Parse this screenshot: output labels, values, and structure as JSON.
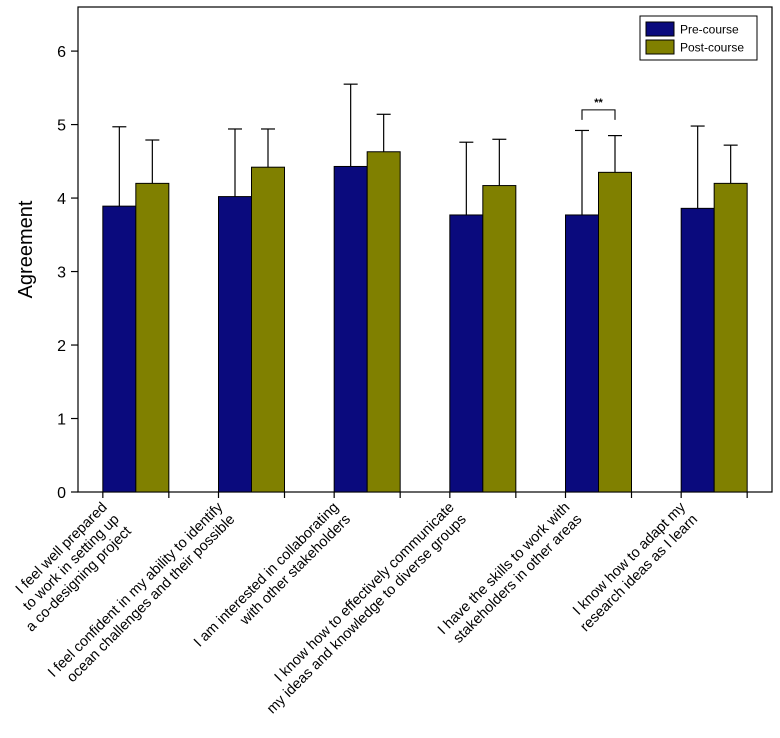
{
  "chart_data": {
    "type": "bar",
    "title": "",
    "xlabel": "",
    "ylabel": "Agreement",
    "ylim": [
      0,
      6.6
    ],
    "yticks": [
      "0",
      "1",
      "2",
      "3",
      "4",
      "5",
      "6"
    ],
    "categories": [
      [
        "I feel well prepared",
        "to work in setting up",
        "a co-designing project"
      ],
      [
        "I feel confident in my ability to identify",
        "ocean challenges and their possible"
      ],
      [
        "I am interested in collaborating",
        "with other stakeholders"
      ],
      [
        "I know how to effectively communicate",
        "my ideas and knowledge to diverse groups"
      ],
      [
        "I have the skills to work with",
        "stakeholders in other areas"
      ],
      [
        "I know how to adapt my",
        "research ideas as I learn"
      ]
    ],
    "series": [
      {
        "name": "Pre-course",
        "color": "#0a0a7d",
        "values": [
          3.89,
          4.02,
          4.43,
          3.77,
          3.77,
          3.86
        ],
        "errors": [
          1.08,
          0.92,
          1.12,
          0.99,
          1.15,
          1.12
        ]
      },
      {
        "name": "Post-course",
        "color": "#808000",
        "values": [
          4.2,
          4.42,
          4.63,
          4.17,
          4.35,
          4.2
        ],
        "errors": [
          0.59,
          0.52,
          0.51,
          0.63,
          0.5,
          0.52
        ]
      }
    ],
    "annotations": [
      {
        "category_index": 4,
        "text": "**",
        "y": 5.2
      }
    ],
    "legend": {
      "position": "top-right"
    },
    "grid": false
  }
}
